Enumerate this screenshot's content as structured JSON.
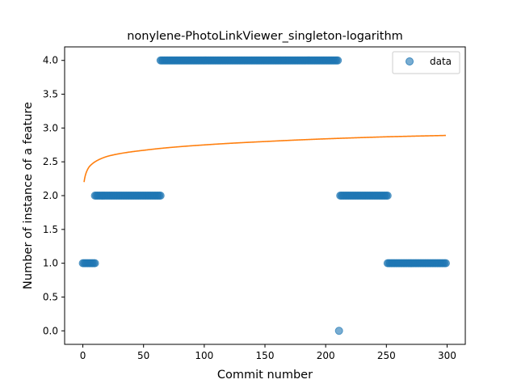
{
  "chart_data": {
    "type": "scatter",
    "title": "nonylene-PhotoLinkViewer_singleton-logarithm",
    "xlabel": "Commit number",
    "ylabel": "Number of instance of a feature",
    "xlim": [
      -15,
      315
    ],
    "ylim": [
      -0.2,
      4.2
    ],
    "x_ticks": [
      0,
      50,
      100,
      150,
      200,
      250,
      300
    ],
    "y_ticks": [
      0.0,
      0.5,
      1.0,
      1.5,
      2.0,
      2.5,
      3.0,
      3.5,
      4.0
    ],
    "x_tick_labels": [
      "0",
      "50",
      "100",
      "150",
      "200",
      "250",
      "300"
    ],
    "y_tick_labels": [
      "0.0",
      "0.5",
      "1.0",
      "1.5",
      "2.0",
      "2.5",
      "3.0",
      "3.5",
      "4.0"
    ],
    "grid": false,
    "legend": {
      "position": "top-right",
      "entries": [
        "data"
      ]
    },
    "series": [
      {
        "name": "data",
        "kind": "scatter",
        "color": "#1f77b4",
        "segments": [
          {
            "x_start": 0,
            "x_end": 10,
            "y": 1
          },
          {
            "x_start": 10,
            "x_end": 64,
            "y": 2
          },
          {
            "x_start": 64,
            "x_end": 210,
            "y": 4
          },
          {
            "x_start": 211,
            "x_end": 211,
            "y": 0
          },
          {
            "x_start": 212,
            "x_end": 251,
            "y": 2
          },
          {
            "x_start": 251,
            "x_end": 299,
            "y": 1
          }
        ]
      },
      {
        "kind": "line",
        "color": "#ff7f0e",
        "fit": "logarithmic",
        "x_range": [
          1,
          299
        ],
        "sample_points": [
          [
            1,
            2.2
          ],
          [
            5,
            2.42
          ],
          [
            20,
            2.58
          ],
          [
            50,
            2.67
          ],
          [
            100,
            2.75
          ],
          [
            150,
            2.8
          ],
          [
            200,
            2.84
          ],
          [
            250,
            2.87
          ],
          [
            299,
            2.89
          ]
        ]
      }
    ]
  }
}
